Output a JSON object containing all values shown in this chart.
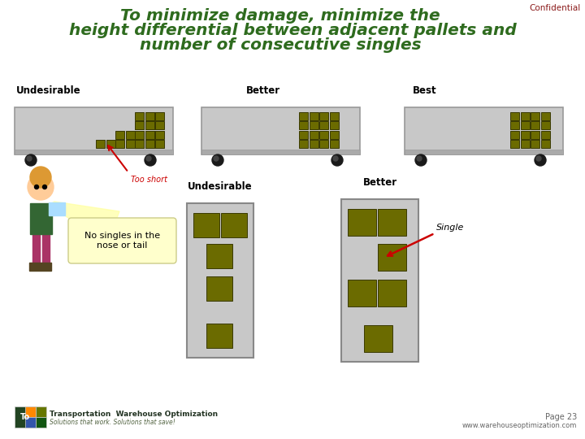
{
  "title_line1": "To minimize damage, minimize the",
  "title_line2": "height differential between adjacent pallets and",
  "title_line3": "number of consecutive singles",
  "title_color": "#2E6B1E",
  "confidential_text": "Confidential",
  "confidential_color": "#8B1A1A",
  "truck_fill": "#C8C8C8",
  "truck_stroke": "#999999",
  "pallet_fill": "#6B6B00",
  "pallet_stroke": "#3A3A00",
  "wheel_color": "#1A1A1A",
  "arrow_color": "#CC0000",
  "label_undesirable1": "Undesirable",
  "label_better1": "Better",
  "label_best": "Best",
  "label_too_short": "Too short",
  "label_undesirable2": "Undesirable",
  "label_better2": "Better",
  "label_single": "Single",
  "label_no_singles": "No singles in the\nnose or tail",
  "nosingle_box_color": "#FFFFCC",
  "page_text": "Page 23",
  "website_text": "www.warehouseoptimization.com",
  "bg_color": "#FFFFFF",
  "trailer_floor_color": "#AAAAAA",
  "trailer_fill": "#CCCCCC",
  "bottom_rect_fill": "#C8C8C8",
  "bottom_rect_stroke": "#888888"
}
